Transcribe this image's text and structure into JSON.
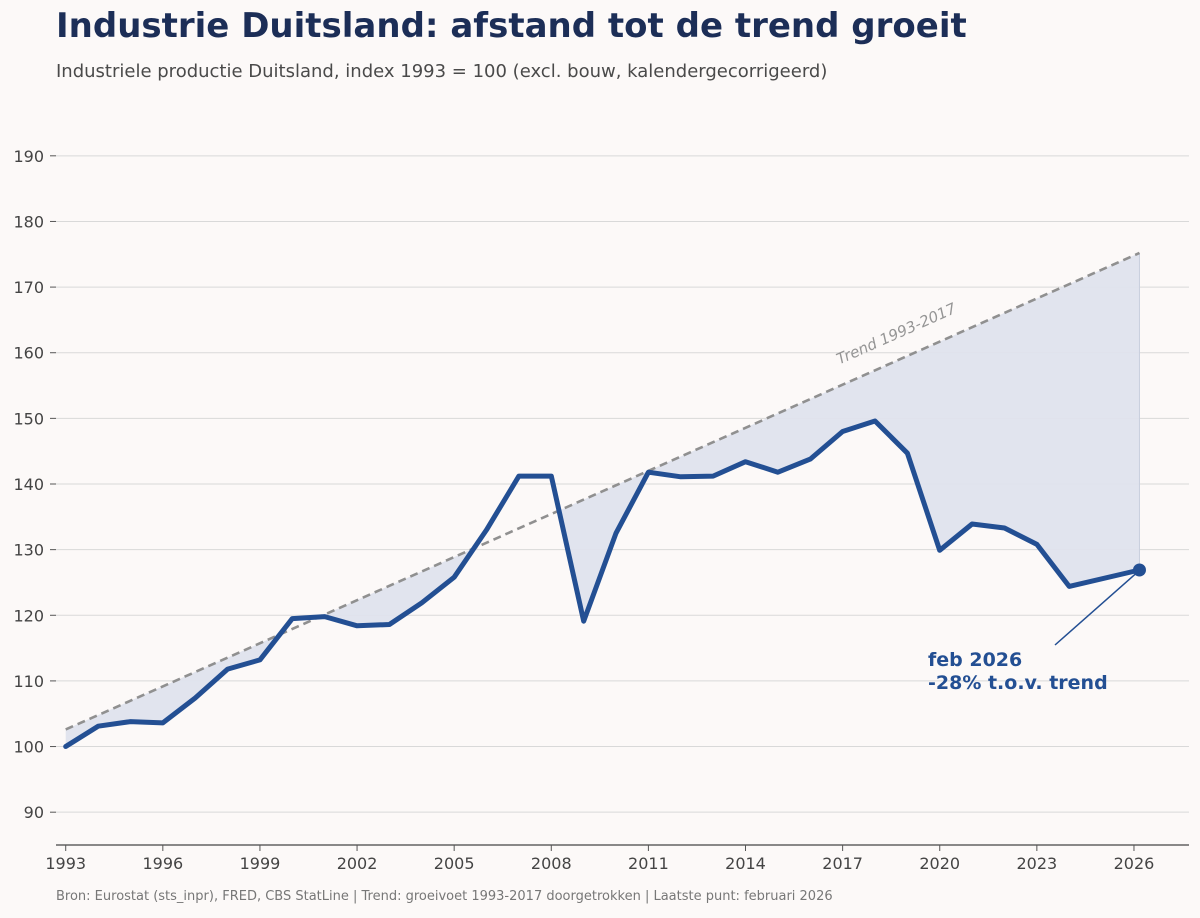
{
  "title": "Industrie Duitsland: afstand tot de trend groeit",
  "subtitle": "Industriele productie Duitsland, index 1993 = 100 (excl. bouw, kalendergecorrigeerd)",
  "footer": "Bron: Eurostat (sts_inpr), FRED, CBS StatLine  |  Trend: groeivoet 1993-2017 doorgetrokken  |  Laatste punt: februari 2026",
  "colors": {
    "series": "#234f93",
    "trend": "#909090",
    "gap_fill": "#dfe3ed",
    "grid": "#d9d9d9",
    "background": "#fcf9f8",
    "title": "#1c2e57"
  },
  "chart_data": {
    "type": "line",
    "title": "Industrie Duitsland: afstand tot de trend groeit",
    "subtitle": "Industriele productie Duitsland, index 1993 = 100 (excl. bouw, kalendergecorrigeerd)",
    "xlabel": "",
    "ylabel": "",
    "xlim": [
      1992.7,
      2027.7
    ],
    "ylim": [
      85,
      195
    ],
    "x_ticks": [
      1993,
      1996,
      1999,
      2002,
      2005,
      2008,
      2011,
      2014,
      2017,
      2020,
      2023,
      2026
    ],
    "y_ticks": [
      90,
      100,
      110,
      120,
      130,
      140,
      150,
      160,
      170,
      180,
      190
    ],
    "grid": "horizontal",
    "series": [
      {
        "name": "",
        "x": [
          1993,
          1994,
          1995,
          1996,
          1997,
          1998,
          1999,
          2000,
          2001,
          2002,
          2003,
          2004,
          2005,
          2006,
          2007,
          2008,
          2009,
          2010,
          2011,
          2012,
          2013,
          2014,
          2015,
          2016,
          2017,
          2018,
          2019,
          2020,
          2021,
          2022,
          2023,
          2024,
          2026.17
        ],
        "values": [
          100.0,
          103.1,
          103.8,
          103.6,
          107.4,
          111.8,
          113.2,
          119.5,
          119.8,
          118.4,
          118.6,
          121.9,
          125.8,
          133.0,
          141.2,
          141.2,
          119.1,
          132.5,
          141.8,
          141.1,
          141.2,
          143.4,
          141.8,
          143.8,
          148.0,
          149.6,
          144.7,
          129.9,
          133.9,
          133.3,
          130.8,
          124.4,
          126.9
        ]
      },
      {
        "name": "Trend 1993-2017",
        "style": "dashed",
        "x": [
          1993,
          2026.17
        ],
        "values": [
          102.6,
          175.2
        ]
      }
    ],
    "shading": "gap between series and trend where series is below trend",
    "last_point": {
      "x": 2026.17,
      "value": 126.9
    },
    "annotations": [
      {
        "text": "Trend 1993-2017"
      },
      {
        "line1": "feb 2026",
        "line2": "-28% t.o.v. trend"
      }
    ]
  }
}
